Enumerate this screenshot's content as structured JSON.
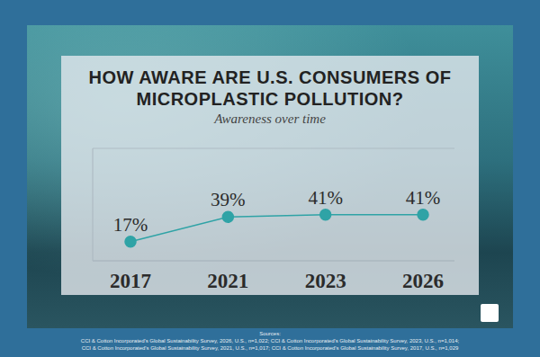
{
  "chart_data": {
    "type": "line",
    "title": "HOW AWARE ARE U.S. CONSUMERS OF MICROPLASTIC POLLUTION?",
    "subtitle": "Awareness over time",
    "categories": [
      "2017",
      "2021",
      "2023",
      "2026"
    ],
    "values": [
      17,
      39,
      41,
      41
    ],
    "value_labels": [
      "17%",
      "39%",
      "41%",
      "41%"
    ],
    "data_labels": true,
    "color": "#2fa3a6",
    "marker": "circle",
    "line_style": "solid",
    "ylim": [
      0,
      100
    ],
    "yticks": [
      0,
      10,
      20,
      30,
      40,
      50,
      60,
      70,
      80,
      90,
      100
    ],
    "grid": true,
    "tick_labels": "x",
    "notes": [
      "Sources:",
      "CCI & Cotton Incorporated's Global Sustainability Survey, 2026, U.S., n=1,022; CCI & Cotton Incorporated's Global Sustainability Survey, 2023, U.S., n=1,014;",
      "CCI & Cotton Incorporated's Global Sustainability Survey, 2021, U.S., n=1,017; CCI & Cotton Incorporated's Global Sustainability Survey, 2017, U.S., n=1,029"
    ]
  }
}
